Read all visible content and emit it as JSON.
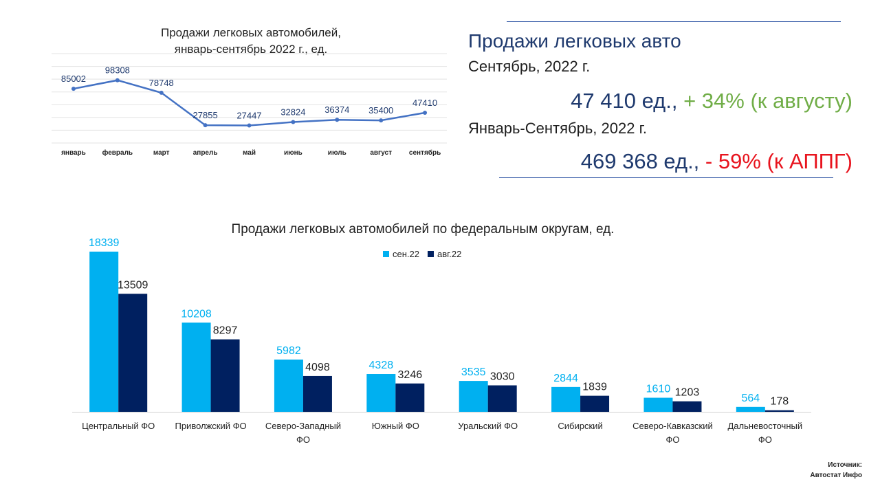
{
  "summary": {
    "heading": "Продажи легковых авто",
    "period_month": "Сентябрь, 2022 г.",
    "month_value": "47 410 ед., ",
    "month_change": "+ 34% (к августу)",
    "period_ytd": "Январь-Сентябрь, 2022 г.",
    "ytd_value": "469 368 ед., ",
    "ytd_change": "- 59% (к АППГ)"
  },
  "source": {
    "label": "Источник:",
    "name": "Автостат Инфо"
  },
  "chart_data": [
    {
      "type": "line",
      "title_lines": [
        "Продажи легковых автомобилей,",
        "январь-сентябрь 2022 г., ед."
      ],
      "categories": [
        "январь",
        "февраль",
        "март",
        "апрель",
        "май",
        "июнь",
        "июль",
        "август",
        "сентябрь"
      ],
      "values": [
        85002,
        98308,
        78748,
        27855,
        27447,
        32824,
        36374,
        35400,
        47410
      ],
      "ylim": [
        0,
        140000
      ],
      "grid": true,
      "series_color": "#4472c4",
      "label_color": "#1f3a6e"
    },
    {
      "type": "bar",
      "title": "Продажи легковых автомобилей по федеральным округам, ед.",
      "categories": [
        "Центральный ФО",
        "Приволжский ФО",
        "Северо-Западный ФО",
        "Южный ФО",
        "Уральский ФО",
        "Сибирский",
        "Северо-Кавказский ФО",
        "Дальневосточный ФО"
      ],
      "series": [
        {
          "name": "сен.22",
          "color": "#00b0f0",
          "label_color": "#00b0f0",
          "values": [
            18339,
            10208,
            5982,
            4328,
            3535,
            2844,
            1610,
            564
          ]
        },
        {
          "name": "авг.22",
          "color": "#002060",
          "label_color": "#1f1f1f",
          "values": [
            13509,
            8297,
            4098,
            3246,
            3030,
            1839,
            1203,
            178
          ]
        }
      ],
      "ylim": [
        0,
        18339
      ],
      "legend": "top"
    }
  ]
}
